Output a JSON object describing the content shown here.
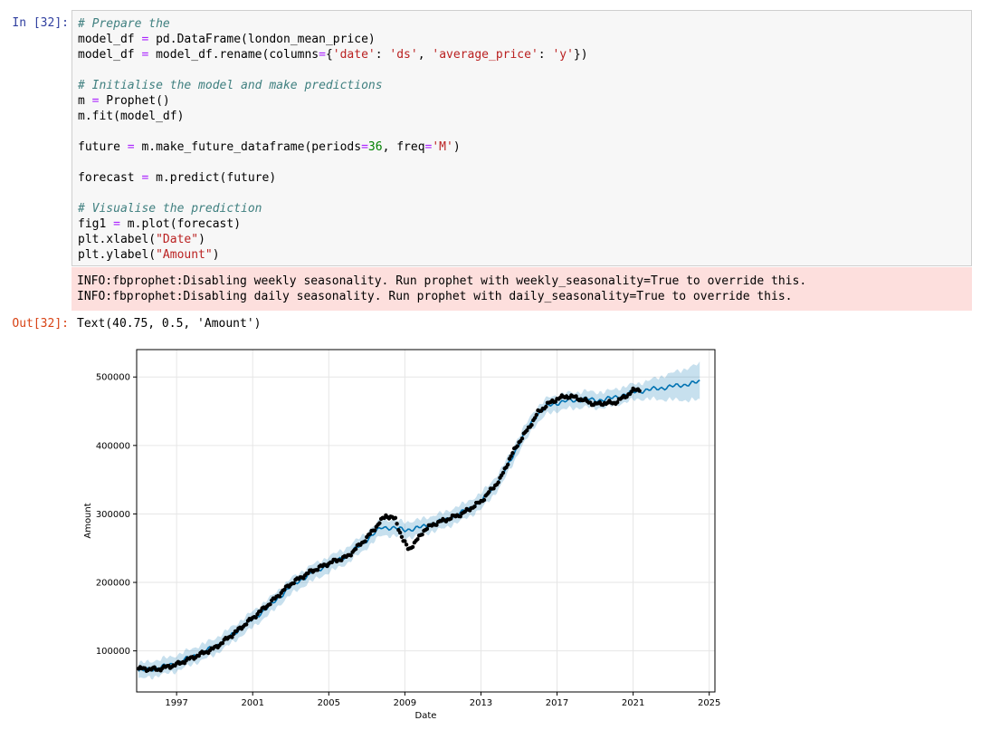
{
  "cell": {
    "in_prompt": "In [32]:",
    "out_prompt": "Out[32]:",
    "code_lines": [
      [
        [
          "cm",
          "# Prepare the"
        ]
      ],
      [
        [
          "",
          "model_df "
        ],
        [
          "op",
          "="
        ],
        [
          "",
          " pd.DataFrame(london_mean_price)"
        ]
      ],
      [
        [
          "",
          "model_df "
        ],
        [
          "op",
          "="
        ],
        [
          "",
          " model_df.rename(columns"
        ],
        [
          "op",
          "="
        ],
        [
          "",
          "{"
        ],
        [
          "st",
          "'date'"
        ],
        [
          "",
          ": "
        ],
        [
          "st",
          "'ds'"
        ],
        [
          "",
          ", "
        ],
        [
          "st",
          "'average_price'"
        ],
        [
          "",
          ": "
        ],
        [
          "st",
          "'y'"
        ],
        [
          "",
          "})"
        ]
      ],
      [],
      [
        [
          "cm",
          "# Initialise the model and make predictions"
        ]
      ],
      [
        [
          "",
          "m "
        ],
        [
          "op",
          "="
        ],
        [
          "",
          " Prophet()"
        ]
      ],
      [
        [
          "",
          "m.fit(model_df)"
        ]
      ],
      [],
      [
        [
          "",
          "future "
        ],
        [
          "op",
          "="
        ],
        [
          "",
          " m.make_future_dataframe(periods"
        ],
        [
          "op",
          "="
        ],
        [
          "nm",
          "36"
        ],
        [
          "",
          ", freq"
        ],
        [
          "op",
          "="
        ],
        [
          "st",
          "'M'"
        ],
        [
          "",
          ")"
        ]
      ],
      [],
      [
        [
          "",
          "forecast "
        ],
        [
          "op",
          "="
        ],
        [
          "",
          " m.predict(future)"
        ]
      ],
      [],
      [
        [
          "cm",
          "# Visualise the prediction"
        ]
      ],
      [
        [
          "",
          "fig1 "
        ],
        [
          "op",
          "="
        ],
        [
          "",
          " m.plot(forecast)"
        ]
      ],
      [
        [
          "",
          "plt.xlabel("
        ],
        [
          "st",
          "\"Date\""
        ],
        [
          "",
          ")"
        ]
      ],
      [
        [
          "",
          "plt.ylabel("
        ],
        [
          "st",
          "\"Amount\""
        ],
        [
          "",
          ")"
        ]
      ]
    ],
    "stderr_lines": [
      "INFO:fbprophet:Disabling weekly seasonality. Run prophet with weekly_seasonality=True to override this.",
      "INFO:fbprophet:Disabling daily seasonality. Run prophet with daily_seasonality=True to override this."
    ],
    "out_text": "Text(40.75, 0.5, 'Amount')"
  },
  "colors": {
    "observed": "#000000",
    "forecast": "#0072b2",
    "interval": "#0072b2",
    "grid": "#e6e6e6"
  },
  "chart_data": {
    "type": "line",
    "xlabel": "Date",
    "ylabel": "Amount",
    "xlim": [
      1994.9,
      2025.3
    ],
    "ylim": [
      40000,
      540000
    ],
    "x_ticks": [
      1997,
      2001,
      2005,
      2009,
      2013,
      2017,
      2021,
      2025
    ],
    "y_ticks": [
      100000,
      200000,
      300000,
      400000,
      500000
    ],
    "grid": true,
    "series": [
      {
        "style": "black-dots",
        "points": [
          [
            1995.0,
            74000
          ],
          [
            1996.0,
            73000
          ],
          [
            1997.0,
            80000
          ],
          [
            1998.0,
            92000
          ],
          [
            1999.0,
            104000
          ],
          [
            2000.0,
            125000
          ],
          [
            2001.0,
            148000
          ],
          [
            2002.0,
            172000
          ],
          [
            2003.0,
            198000
          ],
          [
            2004.0,
            215000
          ],
          [
            2005.0,
            228000
          ],
          [
            2006.0,
            238000
          ],
          [
            2007.0,
            265000
          ],
          [
            2007.6,
            285000
          ],
          [
            2008.0,
            298000
          ],
          [
            2008.5,
            292000
          ],
          [
            2008.9,
            262000
          ],
          [
            2009.2,
            248000
          ],
          [
            2009.6,
            260000
          ],
          [
            2010.0,
            276000
          ],
          [
            2010.5,
            285000
          ],
          [
            2011.0,
            290000
          ],
          [
            2012.0,
            300000
          ],
          [
            2013.0,
            318000
          ],
          [
            2014.0,
            350000
          ],
          [
            2014.5,
            380000
          ],
          [
            2015.0,
            405000
          ],
          [
            2015.5,
            425000
          ],
          [
            2016.0,
            448000
          ],
          [
            2016.5,
            460000
          ],
          [
            2017.0,
            468000
          ],
          [
            2017.5,
            472000
          ],
          [
            2018.0,
            470000
          ],
          [
            2018.5,
            465000
          ],
          [
            2019.0,
            460000
          ],
          [
            2019.5,
            462000
          ],
          [
            2020.0,
            462000
          ],
          [
            2020.5,
            470000
          ],
          [
            2021.0,
            480000
          ],
          [
            2021.4,
            483000
          ]
        ]
      },
      {
        "style": "forecast-line",
        "points": [
          [
            1995.0,
            70000
          ],
          [
            1996.0,
            75000
          ],
          [
            1997.0,
            82000
          ],
          [
            1998.0,
            94000
          ],
          [
            1999.0,
            106000
          ],
          [
            2000.0,
            125000
          ],
          [
            2001.0,
            146000
          ],
          [
            2002.0,
            168000
          ],
          [
            2003.0,
            194000
          ],
          [
            2004.0,
            212000
          ],
          [
            2005.0,
            226000
          ],
          [
            2006.0,
            240000
          ],
          [
            2007.0,
            262000
          ],
          [
            2007.8,
            281000
          ],
          [
            2008.5,
            279000
          ],
          [
            2009.0,
            277000
          ],
          [
            2009.5,
            278000
          ],
          [
            2010.0,
            282000
          ],
          [
            2011.0,
            290000
          ],
          [
            2012.0,
            302000
          ],
          [
            2013.0,
            318000
          ],
          [
            2014.0,
            350000
          ],
          [
            2015.0,
            402000
          ],
          [
            2015.8,
            440000
          ],
          [
            2016.5,
            458000
          ],
          [
            2017.0,
            462000
          ],
          [
            2017.5,
            465000
          ],
          [
            2018.0,
            466000
          ],
          [
            2018.5,
            468000
          ],
          [
            2019.0,
            466000
          ],
          [
            2019.5,
            467000
          ],
          [
            2020.0,
            470000
          ],
          [
            2021.0,
            478000
          ],
          [
            2022.0,
            482000
          ],
          [
            2023.0,
            486000
          ],
          [
            2024.0,
            490000
          ],
          [
            2024.5,
            493000
          ]
        ]
      }
    ],
    "interval_halfwidth": {
      "history": 10000,
      "forecast_end": 25000
    }
  }
}
